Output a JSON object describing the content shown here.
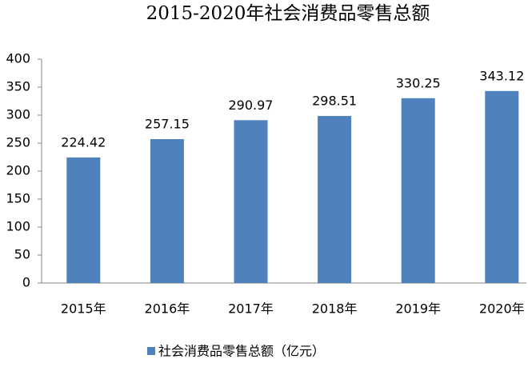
{
  "chart_data": {
    "type": "bar",
    "title": "2015-2020年社会消费品零售总额",
    "categories": [
      "2015年",
      "2016年",
      "2017年",
      "2018年",
      "2019年",
      "2020年"
    ],
    "series": [
      {
        "name": "社会消费品零售总额（亿元）",
        "color": "#4f81bd",
        "values": [
          224.42,
          257.15,
          290.97,
          298.51,
          330.25,
          343.12
        ]
      }
    ],
    "ylim": [
      0,
      400
    ],
    "yticks": [
      0,
      50,
      100,
      150,
      200,
      250,
      300,
      350,
      400
    ],
    "grid": false,
    "legend": "bottom"
  }
}
